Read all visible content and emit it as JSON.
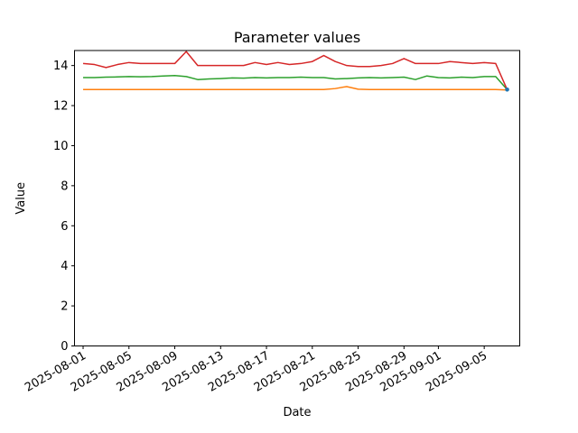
{
  "chart_data": {
    "type": "line",
    "title": "Parameter values",
    "xlabel": "Date",
    "ylabel": "Value",
    "grid": false,
    "legend": "none",
    "background_color": "#ffffff",
    "spine_color": "#000000",
    "ylim": [
      0,
      14.75
    ],
    "x_start_date": "2025-08-01",
    "xlim_day_offsets": [
      -0.75,
      38.1
    ],
    "yticks": [
      0,
      2,
      4,
      6,
      8,
      10,
      12,
      14
    ],
    "xticks": [
      {
        "label": "2025-08-01",
        "day": 0
      },
      {
        "label": "2025-08-05",
        "day": 4
      },
      {
        "label": "2025-08-09",
        "day": 8
      },
      {
        "label": "2025-08-13",
        "day": 12
      },
      {
        "label": "2025-08-17",
        "day": 16
      },
      {
        "label": "2025-08-21",
        "day": 20
      },
      {
        "label": "2025-08-25",
        "day": 24
      },
      {
        "label": "2025-08-29",
        "day": 28
      },
      {
        "label": "2025-09-01",
        "day": 31
      },
      {
        "label": "2025-09-05",
        "day": 35
      }
    ],
    "x_dates": [
      "2025-08-01",
      "2025-08-02",
      "2025-08-03",
      "2025-08-04",
      "2025-08-05",
      "2025-08-06",
      "2025-08-07",
      "2025-08-08",
      "2025-08-09",
      "2025-08-10",
      "2025-08-11",
      "2025-08-12",
      "2025-08-13",
      "2025-08-14",
      "2025-08-15",
      "2025-08-16",
      "2025-08-17",
      "2025-08-18",
      "2025-08-19",
      "2025-08-20",
      "2025-08-21",
      "2025-08-22",
      "2025-08-23",
      "2025-08-24",
      "2025-08-25",
      "2025-08-26",
      "2025-08-27",
      "2025-08-28",
      "2025-08-29",
      "2025-08-30",
      "2025-08-31",
      "2025-09-01",
      "2025-09-02",
      "2025-09-03",
      "2025-09-04",
      "2025-09-05",
      "2025-09-06",
      "2025-09-07"
    ],
    "series": [
      {
        "name": "orange",
        "color": "#ff7f0e",
        "values": [
          12.8,
          12.8,
          12.8,
          12.8,
          12.8,
          12.8,
          12.8,
          12.8,
          12.8,
          12.8,
          12.8,
          12.8,
          12.8,
          12.8,
          12.8,
          12.8,
          12.8,
          12.8,
          12.8,
          12.8,
          12.8,
          12.8,
          12.85,
          12.95,
          12.82,
          12.8,
          12.8,
          12.8,
          12.8,
          12.8,
          12.8,
          12.8,
          12.8,
          12.8,
          12.8,
          12.8,
          12.8,
          12.78
        ]
      },
      {
        "name": "green",
        "color": "#2ca02c",
        "values": [
          13.4,
          13.4,
          13.42,
          13.43,
          13.45,
          13.44,
          13.45,
          13.48,
          13.5,
          13.45,
          13.3,
          13.33,
          13.35,
          13.38,
          13.37,
          13.4,
          13.38,
          13.4,
          13.4,
          13.42,
          13.4,
          13.4,
          13.33,
          13.35,
          13.38,
          13.4,
          13.38,
          13.4,
          13.42,
          13.3,
          13.48,
          13.4,
          13.38,
          13.42,
          13.4,
          13.45,
          13.45,
          12.8
        ]
      },
      {
        "name": "red",
        "color": "#d62728",
        "values": [
          14.1,
          14.05,
          13.9,
          14.05,
          14.15,
          14.1,
          14.1,
          14.1,
          14.1,
          14.7,
          14.0,
          14.0,
          14.0,
          14.0,
          14.0,
          14.15,
          14.05,
          14.15,
          14.05,
          14.1,
          14.2,
          14.5,
          14.2,
          14.0,
          13.95,
          13.95,
          14.0,
          14.1,
          14.35,
          14.1,
          14.1,
          14.1,
          14.2,
          14.15,
          14.1,
          14.15,
          14.1,
          12.8
        ]
      },
      {
        "name": "blue",
        "color": "#1f77b4",
        "marker": "dot",
        "x_dates": [
          "2025-09-07"
        ],
        "values": [
          12.8
        ]
      }
    ]
  }
}
